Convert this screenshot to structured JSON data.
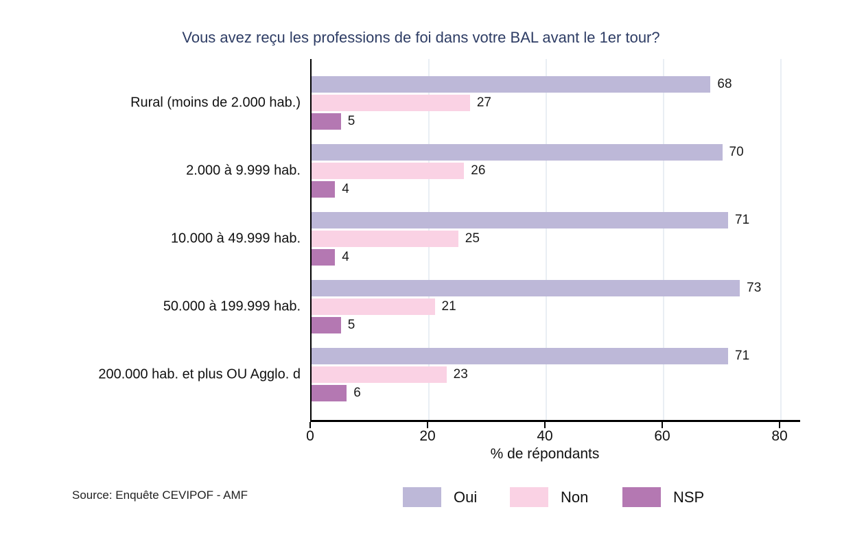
{
  "chart_data": {
    "type": "bar",
    "orientation": "horizontal",
    "title": "Vous avez reçu les professions de foi dans votre BAL avant le 1er tour?",
    "categories": [
      "Rural (moins de 2.000 hab.)",
      "2.000 à 9.999 hab.",
      "10.000 à 49.999 hab.",
      "50.000 à 199.999 hab.",
      "200.000 hab. et plus OU Agglo. d"
    ],
    "series": [
      {
        "name": "Oui",
        "color": "#bdb8d8",
        "values": [
          68,
          70,
          71,
          73,
          71
        ]
      },
      {
        "name": "Non",
        "color": "#fad2e4",
        "values": [
          27,
          26,
          25,
          21,
          23
        ]
      },
      {
        "name": "NSP",
        "color": "#b478b2",
        "values": [
          5,
          4,
          4,
          5,
          6
        ]
      }
    ],
    "xlabel": "% de répondants",
    "xlim": [
      0,
      80
    ],
    "xticks": [
      0,
      20,
      40,
      60,
      80
    ],
    "grid": "vertical-light",
    "value_labels": true,
    "legend_position": "bottom"
  },
  "source": "Source: Enquête CEVIPOF - AMF",
  "colors": {
    "title": "#2d3c64",
    "axis": "#000000",
    "gridline": "#e9eef4",
    "text": "#111111"
  }
}
